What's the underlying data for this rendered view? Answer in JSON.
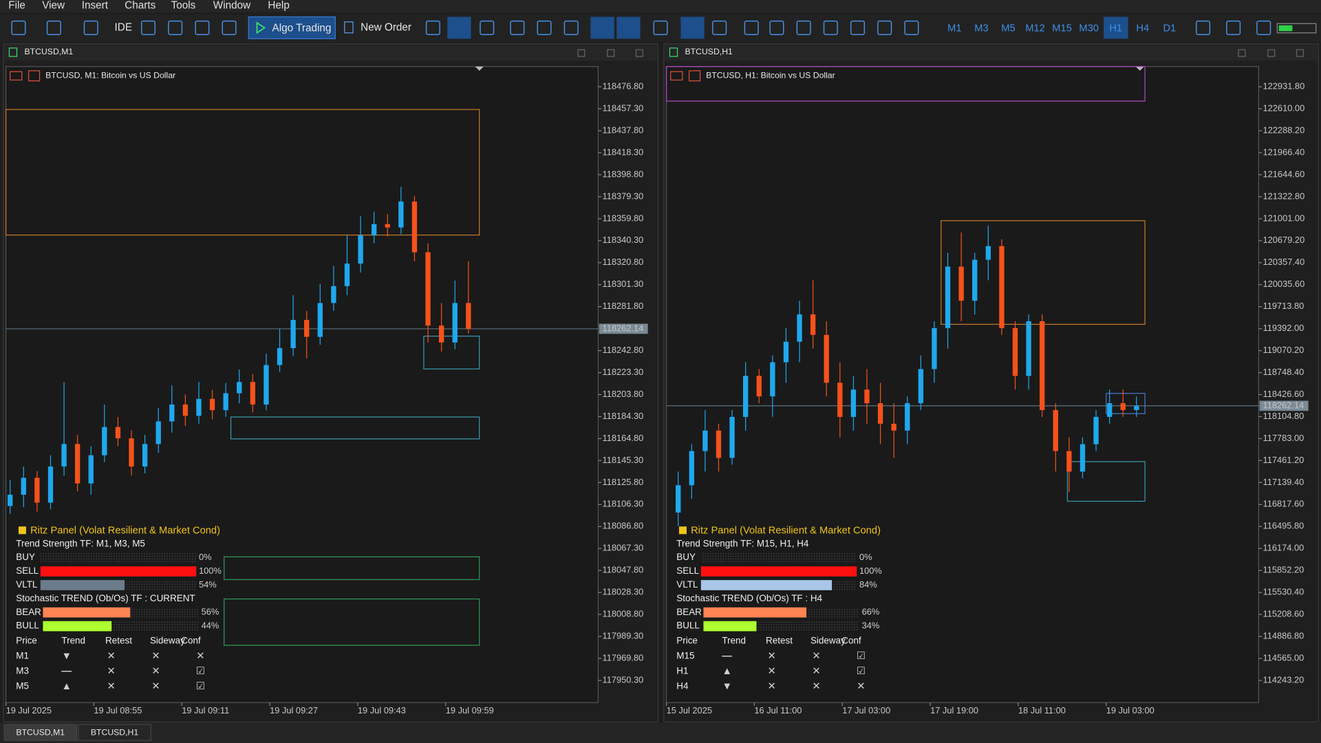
{
  "menu": [
    "File",
    "View",
    "Insert",
    "Charts",
    "Tools",
    "Window",
    "Help"
  ],
  "toolbar": {
    "ide": "IDE",
    "algo_trading": "Algo Trading",
    "new_order": "New Order",
    "timeframes": [
      "M1",
      "M3",
      "M5",
      "M12",
      "M15",
      "M30",
      "H1",
      "H4",
      "D1"
    ],
    "active_timeframe_index": 6
  },
  "windows": [
    {
      "title": "BTCUSD,M1",
      "chart_label": "BTCUSD, M1:  Bitcoin vs US Dollar",
      "bull_color": "#1fa8ee",
      "bear_color": "#f5521b",
      "ylim": [
        117930.65,
        118494.73
      ],
      "yticks": [
        {
          "value": 118476.8,
          "label": "118476.80"
        },
        {
          "value": 118457.3,
          "label": "118457.30"
        },
        {
          "value": 118437.8,
          "label": "118437.80"
        },
        {
          "value": 118418.3,
          "label": "118418.30"
        },
        {
          "value": 118398.8,
          "label": "118398.80"
        },
        {
          "value": 118379.3,
          "label": "118379.30"
        },
        {
          "value": 118359.8,
          "label": "118359.80"
        },
        {
          "value": 118340.3,
          "label": "118340.30"
        },
        {
          "value": 118320.8,
          "label": "118320.80"
        },
        {
          "value": 118301.3,
          "label": "118301.30"
        },
        {
          "value": 118281.8,
          "label": "118281.80"
        },
        {
          "value": 118242.8,
          "label": "118242.80"
        },
        {
          "value": 118223.3,
          "label": "118223.30"
        },
        {
          "value": 118203.8,
          "label": "118203.80"
        },
        {
          "value": 118184.3,
          "label": "118184.30"
        },
        {
          "value": 118164.8,
          "label": "118164.80"
        },
        {
          "value": 118145.3,
          "label": "118145.30"
        },
        {
          "value": 118125.8,
          "label": "118125.80"
        },
        {
          "value": 118106.3,
          "label": "118106.30"
        },
        {
          "value": 118086.8,
          "label": "118086.80"
        },
        {
          "value": 118067.3,
          "label": "118067.30"
        },
        {
          "value": 118047.8,
          "label": "118047.80"
        },
        {
          "value": 118028.3,
          "label": "118028.30"
        },
        {
          "value": 118008.8,
          "label": "118008.80"
        },
        {
          "value": 117989.3,
          "label": "117989.30"
        },
        {
          "value": 117969.8,
          "label": "117969.80"
        },
        {
          "value": 117950.3,
          "label": "117950.30"
        }
      ],
      "current_price": {
        "value": 118262.14,
        "label": "118262.14"
      },
      "xticks": [
        "19 Jul 2025",
        "19 Jul 08:55",
        "19 Jul 09:11",
        "19 Jul 09:27",
        "19 Jul 09:43",
        "19 Jul 09:59"
      ],
      "candles": [
        [
          118105,
          118128,
          118098,
          118115
        ],
        [
          118115,
          118140,
          118104,
          118130
        ],
        [
          118130,
          118136,
          118100,
          118108
        ],
        [
          118108,
          118150,
          118102,
          118140
        ],
        [
          118140,
          118215,
          118132,
          118160
        ],
        [
          118160,
          118168,
          118118,
          118125
        ],
        [
          118125,
          118158,
          118115,
          118150
        ],
        [
          118150,
          118195,
          118144,
          118175
        ],
        [
          118175,
          118184,
          118158,
          118165
        ],
        [
          118165,
          118172,
          118132,
          118140
        ],
        [
          118140,
          118168,
          118134,
          118160
        ],
        [
          118160,
          118192,
          118152,
          118180
        ],
        [
          118180,
          118212,
          118170,
          118195
        ],
        [
          118195,
          118204,
          118176,
          118185
        ],
        [
          118185,
          118215,
          118178,
          118200
        ],
        [
          118200,
          118208,
          118182,
          118190
        ],
        [
          118190,
          118214,
          118184,
          118205
        ],
        [
          118205,
          118226,
          118196,
          118215
        ],
        [
          118215,
          118222,
          118188,
          118195
        ],
        [
          118195,
          118240,
          118190,
          118230
        ],
        [
          118230,
          118262,
          118224,
          118245
        ],
        [
          118245,
          118292,
          118238,
          118270
        ],
        [
          118270,
          118278,
          118236,
          118255
        ],
        [
          118255,
          118302,
          118248,
          118285
        ],
        [
          118285,
          118318,
          118278,
          118300
        ],
        [
          118300,
          118345,
          118292,
          118320
        ],
        [
          118320,
          118362,
          118312,
          118345
        ],
        [
          118345,
          118366,
          118338,
          118355
        ],
        [
          118355,
          118364,
          118344,
          118352
        ],
        [
          118352,
          118388,
          118346,
          118375
        ],
        [
          118375,
          118380,
          118322,
          118330
        ],
        [
          118330,
          118338,
          118250,
          118265
        ],
        [
          118265,
          118285,
          118242,
          118250
        ],
        [
          118250,
          118305,
          118244,
          118285
        ],
        [
          118285,
          118322,
          118258,
          118262.14
        ]
      ],
      "panel": {
        "title": "Ritz Panel (Volat Resilient & Market Cond)",
        "trend_strength_title": "Trend Strength TF: M1, M3, M5",
        "trend_strength": [
          {
            "name": "BUY",
            "value": 0,
            "label": "0%",
            "color": "#2f72e0"
          },
          {
            "name": "SELL",
            "value": 100,
            "label": "100%",
            "color": "#ff1010"
          },
          {
            "name": "VLTL",
            "value": 54,
            "label": "54%",
            "color": "#6b7c8d"
          }
        ],
        "stochastic_title": "Stochastic TREND (Ob/Os) TF : CURRENT",
        "stochastic": [
          {
            "name": "BEAR",
            "value": 56,
            "label": "56%",
            "color": "#ff8452"
          },
          {
            "name": "BULL",
            "value": 44,
            "label": "44%",
            "color": "#adff2f"
          }
        ],
        "table": {
          "header": [
            "Price",
            "Trend",
            "Retest",
            "Sideway",
            "Conf"
          ],
          "rows": [
            [
              {
                "text": "M1",
                "color": "#f0f0f0"
              },
              {
                "text": "▼",
                "color": "#f5a300"
              },
              {
                "text": "✕",
                "color": "#ff2020"
              },
              {
                "text": "✕",
                "color": "#ff2020"
              },
              {
                "text": "✕",
                "color": "#ff2020"
              }
            ],
            [
              {
                "text": "M3",
                "color": "#f0f0f0"
              },
              {
                "text": "—",
                "color": "#f0f0f0"
              },
              {
                "text": "✕",
                "color": "#ff2020"
              },
              {
                "text": "✕",
                "color": "#ff2020"
              },
              {
                "text": "☑",
                "color": "#2fd04a"
              }
            ],
            [
              {
                "text": "M5",
                "color": "#f0f0f0"
              },
              {
                "text": "▲",
                "color": "#2f8fff"
              },
              {
                "text": "✕",
                "color": "#ff2020"
              },
              {
                "text": "✕",
                "color": "#ff2020"
              },
              {
                "text": "☑",
                "color": "#2fd04a"
              }
            ]
          ]
        }
      }
    },
    {
      "title": "BTCUSD,H1",
      "chart_label": "BTCUSD, H1:  Bitcoin vs US Dollar",
      "bull_color": "#1fa8ee",
      "bear_color": "#f5521b",
      "ylim": [
        113919.0,
        123227.7
      ],
      "yticks": [
        {
          "value": 122931.8,
          "label": "122931.80"
        },
        {
          "value": 122610,
          "label": "122610.00"
        },
        {
          "value": 122288.2,
          "label": "122288.20"
        },
        {
          "value": 121966.4,
          "label": "121966.40"
        },
        {
          "value": 121644.6,
          "label": "121644.60"
        },
        {
          "value": 121322.8,
          "label": "121322.80"
        },
        {
          "value": 121001,
          "label": "121001.00"
        },
        {
          "value": 120679.2,
          "label": "120679.20"
        },
        {
          "value": 120357.4,
          "label": "120357.40"
        },
        {
          "value": 120035.6,
          "label": "120035.60"
        },
        {
          "value": 119713.8,
          "label": "119713.80"
        },
        {
          "value": 119392,
          "label": "119392.00"
        },
        {
          "value": 119070.2,
          "label": "119070.20"
        },
        {
          "value": 118748.4,
          "label": "118748.40"
        },
        {
          "value": 118426.6,
          "label": "118426.60"
        },
        {
          "value": 118104.8,
          "label": "118104.80"
        },
        {
          "value": 117783,
          "label": "117783.00"
        },
        {
          "value": 117461.2,
          "label": "117461.20"
        },
        {
          "value": 117139.4,
          "label": "117139.40"
        },
        {
          "value": 116817.6,
          "label": "116817.60"
        },
        {
          "value": 116495.8,
          "label": "116495.80"
        },
        {
          "value": 116174,
          "label": "116174.00"
        },
        {
          "value": 115852.2,
          "label": "115852.20"
        },
        {
          "value": 115530.4,
          "label": "115530.40"
        },
        {
          "value": 115208.6,
          "label": "115208.60"
        },
        {
          "value": 114886.8,
          "label": "114886.80"
        },
        {
          "value": 114565,
          "label": "114565.00"
        },
        {
          "value": 114243.2,
          "label": "114243.20"
        }
      ],
      "current_price": {
        "value": 118262.14,
        "label": "118262.14"
      },
      "xticks": [
        "15 Jul 2025",
        "16 Jul 11:00",
        "17 Jul 03:00",
        "17 Jul 19:00",
        "18 Jul 11:00",
        "19 Jul 03:00"
      ],
      "candles": [
        [
          116700,
          117300,
          116500,
          117100
        ],
        [
          117100,
          117700,
          116900,
          117600
        ],
        [
          117600,
          118200,
          117300,
          117900
        ],
        [
          117900,
          118000,
          117300,
          117500
        ],
        [
          117500,
          118200,
          117400,
          118100
        ],
        [
          118100,
          118900,
          117900,
          118700
        ],
        [
          118700,
          118800,
          118300,
          118400
        ],
        [
          118400,
          119000,
          118100,
          118900
        ],
        [
          118900,
          119400,
          118600,
          119200
        ],
        [
          119200,
          119800,
          118900,
          119600
        ],
        [
          119600,
          120100,
          119100,
          119300
        ],
        [
          119300,
          119500,
          118400,
          118600
        ],
        [
          118600,
          118900,
          117800,
          118100
        ],
        [
          118100,
          118700,
          117900,
          118500
        ],
        [
          118500,
          118800,
          118000,
          118300
        ],
        [
          118300,
          118600,
          117700,
          118000
        ],
        [
          118000,
          118300,
          117500,
          117900
        ],
        [
          117900,
          118400,
          117700,
          118300
        ],
        [
          118300,
          119000,
          118200,
          118800
        ],
        [
          118800,
          119500,
          118600,
          119400
        ],
        [
          119400,
          120500,
          119100,
          120300
        ],
        [
          120300,
          120800,
          119500,
          119800
        ],
        [
          119800,
          120500,
          119600,
          120400
        ],
        [
          120400,
          120900,
          120100,
          120600
        ],
        [
          120600,
          120700,
          119300,
          119400
        ],
        [
          119400,
          119500,
          118500,
          118700
        ],
        [
          118700,
          119600,
          118500,
          119500
        ],
        [
          119500,
          119600,
          118100,
          118200
        ],
        [
          118200,
          118300,
          117300,
          117600
        ],
        [
          117600,
          117800,
          117000,
          117300
        ],
        [
          117300,
          117800,
          117200,
          117700
        ],
        [
          117700,
          118200,
          117600,
          118100
        ],
        [
          118100,
          118500,
          118000,
          118300
        ],
        [
          118300,
          118500,
          118100,
          118200
        ],
        [
          118200,
          118400,
          118100,
          118262.14
        ]
      ],
      "panel": {
        "title": "Ritz Panel (Volat Resilient & Market Cond)",
        "trend_strength_title": "Trend Strength TF: M15, H1, H4",
        "trend_strength": [
          {
            "name": "BUY",
            "value": 0,
            "label": "0%",
            "color": "#2f72e0"
          },
          {
            "name": "SELL",
            "value": 100,
            "label": "100%",
            "color": "#ff1010"
          },
          {
            "name": "VLTL",
            "value": 84,
            "label": "84%",
            "color": "#a9c6e8"
          }
        ],
        "stochastic_title": "Stochastic TREND (Ob/Os) TF : H4",
        "stochastic": [
          {
            "name": "BEAR",
            "value": 66,
            "label": "66%",
            "color": "#ff8452"
          },
          {
            "name": "BULL",
            "value": 34,
            "label": "34%",
            "color": "#adff2f"
          }
        ],
        "table": {
          "header": [
            "Price",
            "Trend",
            "Retest",
            "Sideway",
            "Conf"
          ],
          "rows": [
            [
              {
                "text": "M15",
                "color": "#f0f0f0"
              },
              {
                "text": "—",
                "color": "#f0f0f0"
              },
              {
                "text": "✕",
                "color": "#ff2020"
              },
              {
                "text": "✕",
                "color": "#ff2020"
              },
              {
                "text": "☑",
                "color": "#2fd04a"
              }
            ],
            [
              {
                "text": "H1",
                "color": "#f0f0f0"
              },
              {
                "text": "▲",
                "color": "#2f8fff"
              },
              {
                "text": "✕",
                "color": "#ff2020"
              },
              {
                "text": "✕",
                "color": "#ff2020"
              },
              {
                "text": "☑",
                "color": "#2fd04a"
              }
            ],
            [
              {
                "text": "H4",
                "color": "#f0f0f0"
              },
              {
                "text": "▼",
                "color": "#f5a300"
              },
              {
                "text": "✕",
                "color": "#ff2020"
              },
              {
                "text": "✕",
                "color": "#ff2020"
              },
              {
                "text": "✕",
                "color": "#ff2020"
              }
            ]
          ]
        }
      }
    }
  ],
  "tabs": [
    "BTCUSD,M1",
    "BTCUSD,H1"
  ]
}
